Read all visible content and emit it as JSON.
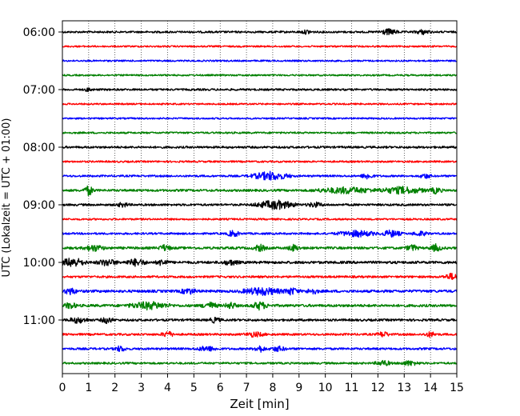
{
  "chart_data": {
    "type": "line",
    "title": "",
    "xlabel": "Zeit  [min]",
    "ylabel": "UTC (Lokalzeit = UTC + 01:00)",
    "xlim": [
      0,
      15
    ],
    "x_ticks": [
      "0",
      "1",
      "2",
      "3",
      "4",
      "5",
      "6",
      "7",
      "8",
      "9",
      "10",
      "11",
      "12",
      "13",
      "14",
      "15"
    ],
    "y_ticks": [
      "06:00",
      "07:00",
      "08:00",
      "09:00",
      "10:00",
      "11:00"
    ],
    "y_tick_rows": [
      0,
      4,
      8,
      12,
      16,
      20
    ],
    "grid": "vertical dotted",
    "trace_interval_min": 15,
    "colors_cycle": [
      "#000000",
      "#ff0000",
      "#0000ff",
      "#008000"
    ],
    "rows": [
      {
        "start": "06:00",
        "color": "#000000",
        "noise": 1.2,
        "bursts": [
          [
            12.4,
            0.5,
            1.8
          ],
          [
            13.7,
            0.4,
            1.4
          ],
          [
            9.3,
            0.3,
            1.2
          ]
        ]
      },
      {
        "start": "06:15",
        "color": "#ff0000",
        "noise": 1.0,
        "bursts": []
      },
      {
        "start": "06:30",
        "color": "#0000ff",
        "noise": 1.0,
        "bursts": []
      },
      {
        "start": "06:45",
        "color": "#008000",
        "noise": 1.0,
        "bursts": []
      },
      {
        "start": "07:00",
        "color": "#000000",
        "noise": 1.2,
        "bursts": [
          [
            1.0,
            0.2,
            1.2
          ]
        ]
      },
      {
        "start": "07:15",
        "color": "#ff0000",
        "noise": 1.0,
        "bursts": []
      },
      {
        "start": "07:30",
        "color": "#0000ff",
        "noise": 1.0,
        "bursts": []
      },
      {
        "start": "07:45",
        "color": "#008000",
        "noise": 1.1,
        "bursts": []
      },
      {
        "start": "08:00",
        "color": "#000000",
        "noise": 1.3,
        "bursts": []
      },
      {
        "start": "08:15",
        "color": "#ff0000",
        "noise": 1.1,
        "bursts": []
      },
      {
        "start": "08:30",
        "color": "#0000ff",
        "noise": 1.2,
        "bursts": [
          [
            7.9,
            1.0,
            2.8
          ],
          [
            11.6,
            0.3,
            2.0
          ],
          [
            13.8,
            0.3,
            1.5
          ]
        ]
      },
      {
        "start": "08:45",
        "color": "#008000",
        "noise": 1.4,
        "bursts": [
          [
            1.0,
            0.25,
            3.2
          ],
          [
            10.8,
            1.5,
            2.0
          ],
          [
            12.9,
            1.2,
            2.2
          ],
          [
            14.2,
            0.3,
            2.0
          ]
        ]
      },
      {
        "start": "09:00",
        "color": "#000000",
        "noise": 1.3,
        "bursts": [
          [
            8.1,
            1.0,
            3.0
          ],
          [
            9.6,
            0.4,
            1.6
          ],
          [
            2.3,
            0.3,
            1.4
          ]
        ]
      },
      {
        "start": "09:15",
        "color": "#ff0000",
        "noise": 1.1,
        "bursts": []
      },
      {
        "start": "09:30",
        "color": "#0000ff",
        "noise": 1.2,
        "bursts": [
          [
            6.5,
            0.3,
            2.2
          ],
          [
            11.2,
            1.0,
            2.0
          ],
          [
            12.5,
            0.5,
            2.2
          ],
          [
            13.6,
            0.4,
            1.5
          ]
        ]
      },
      {
        "start": "09:45",
        "color": "#008000",
        "noise": 1.5,
        "bursts": [
          [
            1.2,
            0.5,
            2.0
          ],
          [
            3.9,
            0.3,
            2.0
          ],
          [
            7.5,
            0.3,
            2.2
          ],
          [
            8.8,
            0.3,
            2.0
          ],
          [
            13.3,
            0.3,
            2.0
          ],
          [
            14.2,
            0.3,
            2.2
          ]
        ]
      },
      {
        "start": "10:00",
        "color": "#000000",
        "noise": 1.6,
        "bursts": [
          [
            0.4,
            0.6,
            3.0
          ],
          [
            1.7,
            0.5,
            2.0
          ],
          [
            2.8,
            0.5,
            2.2
          ],
          [
            3.8,
            0.3,
            2.0
          ],
          [
            6.4,
            0.4,
            1.6
          ]
        ]
      },
      {
        "start": "10:15",
        "color": "#ff0000",
        "noise": 1.3,
        "bursts": [
          [
            14.8,
            0.4,
            2.0
          ]
        ]
      },
      {
        "start": "10:30",
        "color": "#0000ff",
        "noise": 1.6,
        "bursts": [
          [
            0.3,
            0.3,
            2.2
          ],
          [
            4.8,
            0.4,
            1.8
          ],
          [
            7.6,
            1.0,
            2.4
          ],
          [
            8.7,
            0.4,
            2.2
          ],
          [
            9.5,
            0.3,
            1.8
          ]
        ]
      },
      {
        "start": "10:45",
        "color": "#008000",
        "noise": 1.6,
        "bursts": [
          [
            0.3,
            0.3,
            2.0
          ],
          [
            3.3,
            1.0,
            2.4
          ],
          [
            5.6,
            0.4,
            2.0
          ],
          [
            6.4,
            0.3,
            2.0
          ],
          [
            7.5,
            0.4,
            2.5
          ]
        ]
      },
      {
        "start": "11:00",
        "color": "#000000",
        "noise": 1.4,
        "bursts": [
          [
            0.6,
            0.5,
            1.8
          ],
          [
            1.7,
            0.3,
            2.0
          ],
          [
            5.8,
            0.3,
            1.6
          ]
        ]
      },
      {
        "start": "11:15",
        "color": "#ff0000",
        "noise": 1.3,
        "bursts": [
          [
            4.0,
            0.3,
            2.0
          ],
          [
            12.2,
            0.3,
            1.8
          ],
          [
            14.0,
            0.3,
            1.6
          ],
          [
            7.3,
            0.5,
            1.5
          ]
        ]
      },
      {
        "start": "11:30",
        "color": "#0000ff",
        "noise": 1.3,
        "bursts": [
          [
            2.2,
            0.3,
            1.8
          ],
          [
            5.5,
            0.5,
            1.6
          ],
          [
            7.5,
            0.3,
            2.2
          ],
          [
            8.2,
            0.4,
            1.6
          ]
        ]
      },
      {
        "start": "11:45",
        "color": "#008000",
        "noise": 1.2,
        "bursts": [
          [
            12.2,
            0.4,
            1.8
          ],
          [
            13.2,
            0.5,
            1.5
          ]
        ]
      }
    ]
  }
}
